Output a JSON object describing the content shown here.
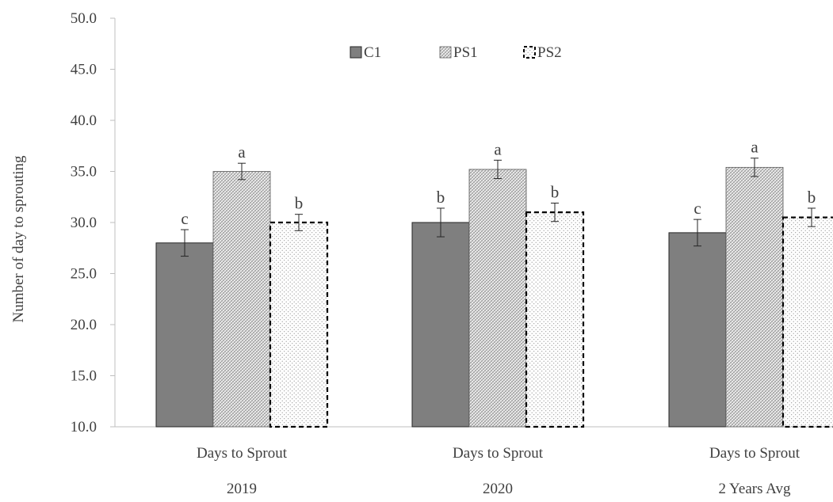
{
  "chart_data": {
    "type": "bar",
    "ylabel": "Number  of day to sprouting",
    "ylim": [
      10.0,
      50.0
    ],
    "yticks": [
      "10.0",
      "15.0",
      "20.0",
      "25.0",
      "30.0",
      "35.0",
      "40.0",
      "45.0",
      "50.0"
    ],
    "groups": [
      {
        "category": "Days to Sprout",
        "group": "2019"
      },
      {
        "category": "Days to Sprout",
        "group": "2020"
      },
      {
        "category": "Days to Sprout",
        "group": "2 Years Avg"
      }
    ],
    "series": [
      {
        "name": "C1",
        "values": [
          28.0,
          30.0,
          29.0
        ],
        "errors": [
          1.3,
          1.4,
          1.3
        ],
        "letters": [
          "c",
          "b",
          "c"
        ],
        "fill": "#7f7f7f",
        "pattern": "solid"
      },
      {
        "name": "PS1",
        "values": [
          35.0,
          35.2,
          35.4
        ],
        "errors": [
          0.8,
          0.9,
          0.9
        ],
        "letters": [
          "a",
          "a",
          "a"
        ],
        "fill": "#d9d9d9",
        "pattern": "diagonal-grid"
      },
      {
        "name": "PS2",
        "values": [
          30.0,
          31.0,
          30.5
        ],
        "errors": [
          0.8,
          0.9,
          0.9
        ],
        "letters": [
          "b",
          "b",
          "b"
        ],
        "fill": "#ffffff",
        "pattern": "dotted-dashed-outline"
      }
    ],
    "grid": false,
    "legend_position": "top-center"
  }
}
